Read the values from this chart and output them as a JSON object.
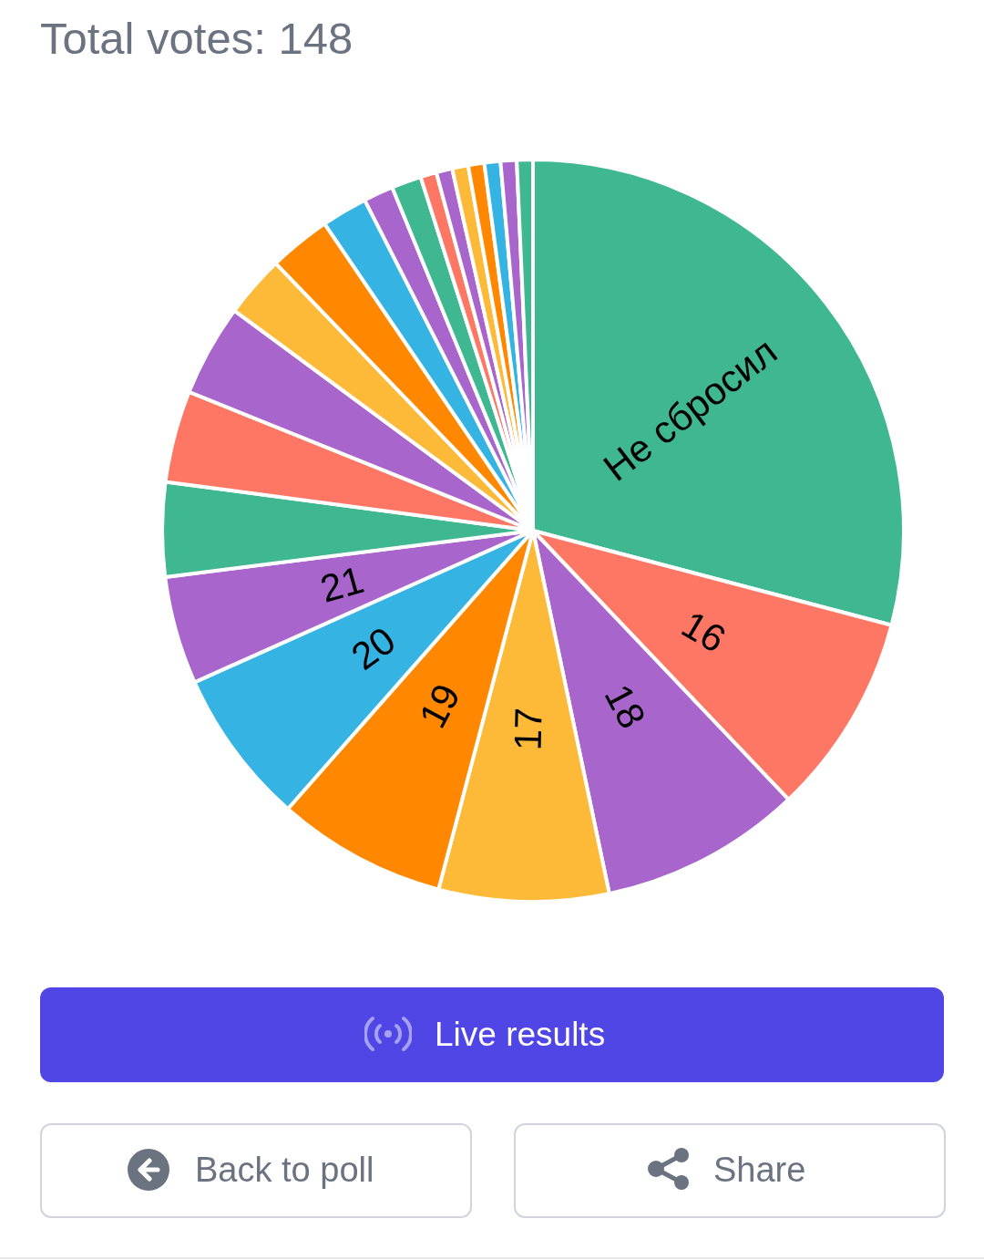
{
  "chart_data": {
    "type": "pie",
    "title": "Total votes: 148",
    "categories": [
      "Не сбросил",
      "16",
      "18",
      "17",
      "19",
      "20",
      "21",
      null,
      null,
      null,
      null,
      null,
      null,
      null,
      null,
      null,
      null,
      null,
      null,
      null,
      null,
      null
    ],
    "values": [
      29.1,
      8.8,
      8.8,
      7.4,
      7.4,
      6.8,
      4.7,
      4.1,
      4.0,
      4.0,
      2.7,
      2.7,
      2.0,
      1.3,
      1.3,
      0.7,
      0.7,
      0.7,
      0.7,
      0.7,
      0.7,
      0.7
    ],
    "colors": [
      "#3fb891",
      "#fe7764",
      "#a866cc",
      "#fdb938",
      "#ff8800",
      "#35b3e3",
      "#a866cc",
      "#3fb891",
      "#fe7764",
      "#a866cc",
      "#fdb938",
      "#ff8800",
      "#35b3e3",
      "#a866cc",
      "#3fb891",
      "#fe7764",
      "#a866cc",
      "#fdb938",
      "#ff8800",
      "#35b3e3",
      "#a866cc",
      "#3fb891"
    ],
    "annotations": [
      "Live results",
      "Back to poll",
      "Share"
    ]
  }
}
